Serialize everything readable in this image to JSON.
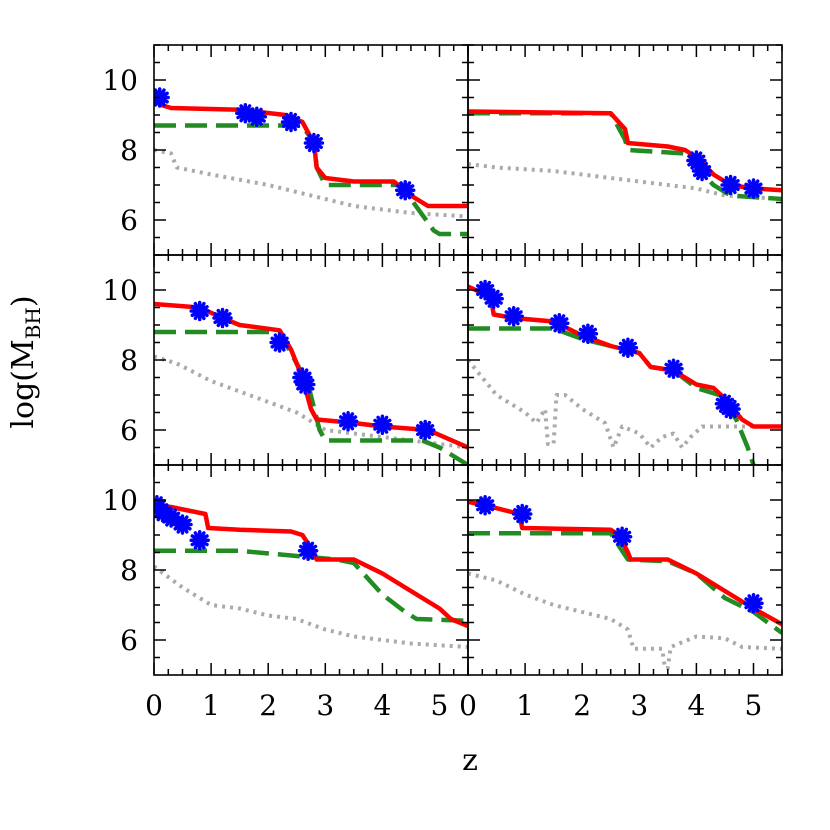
{
  "chart_data": {
    "type": "line",
    "xlabel": "z",
    "ylabel": "log(M",
    "ylabel_sub": "BH",
    "ylabel_close": ")",
    "xlim": [
      0,
      5.5
    ],
    "ylim": [
      5,
      11
    ],
    "x_ticks": [
      "0",
      "1",
      "2",
      "3",
      "4",
      "5"
    ],
    "y_ticks": [
      "6",
      "8",
      "10"
    ],
    "grid": false,
    "legend": "none",
    "colors": {
      "red": "#ff0000",
      "green": "#228b22",
      "gray": "#aaaaaa",
      "star": "#0000ff"
    },
    "panels": [
      {
        "red": [
          [
            0,
            9.5
          ],
          [
            0.1,
            9.3
          ],
          [
            0.3,
            9.2
          ],
          [
            1.5,
            9.15
          ],
          [
            2.3,
            9.0
          ],
          [
            2.6,
            8.8
          ],
          [
            2.8,
            8.2
          ],
          [
            2.85,
            7.5
          ],
          [
            3.0,
            7.2
          ],
          [
            3.5,
            7.1
          ],
          [
            4.2,
            7.1
          ],
          [
            4.5,
            6.7
          ],
          [
            4.8,
            6.4
          ],
          [
            5.5,
            6.4
          ]
        ],
        "green": [
          [
            0,
            8.7
          ],
          [
            2.6,
            8.7
          ],
          [
            2.8,
            8.2
          ],
          [
            2.85,
            7.5
          ],
          [
            3.0,
            7.0
          ],
          [
            4.3,
            7.0
          ],
          [
            4.5,
            6.6
          ],
          [
            4.9,
            5.7
          ],
          [
            5.0,
            5.6
          ],
          [
            5.5,
            5.6
          ]
        ],
        "gray": [
          [
            0,
            8.0
          ],
          [
            0.3,
            7.9
          ],
          [
            0.4,
            7.5
          ],
          [
            1.0,
            7.3
          ],
          [
            2.0,
            7.0
          ],
          [
            2.5,
            6.8
          ],
          [
            3.0,
            6.6
          ],
          [
            3.5,
            6.4
          ],
          [
            4.0,
            6.3
          ],
          [
            4.5,
            6.2
          ],
          [
            5.5,
            6.1
          ]
        ],
        "stars": [
          [
            0.1,
            9.5
          ],
          [
            1.6,
            9.05
          ],
          [
            1.8,
            8.95
          ],
          [
            2.4,
            8.8
          ],
          [
            2.8,
            8.2
          ],
          [
            4.4,
            6.85
          ]
        ]
      },
      {
        "red": [
          [
            0,
            9.1
          ],
          [
            2.5,
            9.05
          ],
          [
            2.75,
            8.6
          ],
          [
            2.8,
            8.2
          ],
          [
            3.5,
            8.1
          ],
          [
            3.8,
            8.0
          ],
          [
            4.0,
            7.8
          ],
          [
            4.3,
            7.3
          ],
          [
            4.6,
            7.0
          ],
          [
            5.0,
            6.9
          ],
          [
            5.5,
            6.85
          ]
        ],
        "green": [
          [
            0,
            9.05
          ],
          [
            2.5,
            9.05
          ],
          [
            2.75,
            8.3
          ],
          [
            2.8,
            8.0
          ],
          [
            3.8,
            7.9
          ],
          [
            4.0,
            7.5
          ],
          [
            4.3,
            7.0
          ],
          [
            4.6,
            6.7
          ],
          [
            5.5,
            6.6
          ]
        ],
        "gray": [
          [
            0,
            7.6
          ],
          [
            0.5,
            7.5
          ],
          [
            1.5,
            7.4
          ],
          [
            2.5,
            7.2
          ],
          [
            3.5,
            7.0
          ],
          [
            4.0,
            6.9
          ],
          [
            4.5,
            6.7
          ],
          [
            5.5,
            6.6
          ]
        ],
        "stars": [
          [
            4.0,
            7.7
          ],
          [
            4.1,
            7.4
          ],
          [
            4.6,
            7.0
          ],
          [
            5.0,
            6.9
          ]
        ]
      },
      {
        "red": [
          [
            0,
            9.6
          ],
          [
            0.8,
            9.5
          ],
          [
            1.2,
            9.2
          ],
          [
            1.5,
            9.0
          ],
          [
            2.2,
            8.85
          ],
          [
            2.4,
            8.3
          ],
          [
            2.6,
            7.5
          ],
          [
            2.75,
            6.6
          ],
          [
            2.85,
            6.3
          ],
          [
            3.5,
            6.2
          ],
          [
            4.0,
            6.1
          ],
          [
            4.8,
            6.0
          ],
          [
            5.5,
            5.5
          ]
        ],
        "green": [
          [
            0,
            8.8
          ],
          [
            2.2,
            8.8
          ],
          [
            2.5,
            7.9
          ],
          [
            2.7,
            7.3
          ],
          [
            2.9,
            6.0
          ],
          [
            3.0,
            5.7
          ],
          [
            4.7,
            5.7
          ],
          [
            5.0,
            5.5
          ],
          [
            5.5,
            5.0
          ]
        ],
        "gray": [
          [
            0,
            8.1
          ],
          [
            0.4,
            7.9
          ],
          [
            1.0,
            7.4
          ],
          [
            1.5,
            7.1
          ],
          [
            2.0,
            6.8
          ],
          [
            2.5,
            6.5
          ],
          [
            3.0,
            6.0
          ],
          [
            3.5,
            5.9
          ],
          [
            4.0,
            5.8
          ],
          [
            4.5,
            5.7
          ],
          [
            5.0,
            5.6
          ],
          [
            5.5,
            5.5
          ]
        ],
        "stars": [
          [
            0.8,
            9.4
          ],
          [
            1.2,
            9.2
          ],
          [
            2.2,
            8.5
          ],
          [
            2.6,
            7.5
          ],
          [
            2.65,
            7.3
          ],
          [
            3.4,
            6.25
          ],
          [
            4.0,
            6.15
          ],
          [
            4.75,
            6.0
          ]
        ]
      },
      {
        "red": [
          [
            0,
            10.1
          ],
          [
            0.4,
            9.8
          ],
          [
            0.45,
            9.3
          ],
          [
            0.8,
            9.2
          ],
          [
            1.5,
            9.1
          ],
          [
            2.0,
            8.7
          ],
          [
            2.5,
            8.4
          ],
          [
            3.0,
            8.2
          ],
          [
            3.2,
            7.8
          ],
          [
            3.6,
            7.7
          ],
          [
            4.0,
            7.3
          ],
          [
            4.3,
            7.2
          ],
          [
            4.5,
            6.9
          ],
          [
            4.8,
            6.3
          ],
          [
            5.0,
            6.1
          ],
          [
            5.5,
            6.1
          ]
        ],
        "green": [
          [
            0,
            8.9
          ],
          [
            1.5,
            8.9
          ],
          [
            2.0,
            8.6
          ],
          [
            2.5,
            8.4
          ],
          [
            3.0,
            8.2
          ],
          [
            3.2,
            7.8
          ],
          [
            3.6,
            7.7
          ],
          [
            4.0,
            7.2
          ],
          [
            4.4,
            7.0
          ],
          [
            4.7,
            6.3
          ],
          [
            4.9,
            5.5
          ],
          [
            5.0,
            5.0
          ]
        ],
        "gray": [
          [
            0,
            8.0
          ],
          [
            0.5,
            7.0
          ],
          [
            1.0,
            6.5
          ],
          [
            1.2,
            6.2
          ],
          [
            1.35,
            6.6
          ],
          [
            1.4,
            5.6
          ],
          [
            1.5,
            5.6
          ],
          [
            1.55,
            7.0
          ],
          [
            1.7,
            7.0
          ],
          [
            2.0,
            6.6
          ],
          [
            2.4,
            6.2
          ],
          [
            2.55,
            5.5
          ],
          [
            2.7,
            6.1
          ],
          [
            3.0,
            5.9
          ],
          [
            3.2,
            5.5
          ],
          [
            3.4,
            5.8
          ],
          [
            3.6,
            5.9
          ],
          [
            3.75,
            5.5
          ],
          [
            3.9,
            5.8
          ],
          [
            4.1,
            6.1
          ],
          [
            4.5,
            6.1
          ],
          [
            5.5,
            6.1
          ]
        ],
        "stars": [
          [
            0.3,
            10.0
          ],
          [
            0.45,
            9.75
          ],
          [
            0.8,
            9.25
          ],
          [
            1.6,
            9.05
          ],
          [
            2.1,
            8.75
          ],
          [
            2.8,
            8.35
          ],
          [
            3.6,
            7.75
          ],
          [
            4.5,
            6.75
          ],
          [
            4.6,
            6.6
          ]
        ]
      },
      {
        "red": [
          [
            0,
            9.85
          ],
          [
            0.3,
            9.8
          ],
          [
            0.9,
            9.6
          ],
          [
            0.95,
            9.2
          ],
          [
            1.5,
            9.15
          ],
          [
            2.4,
            9.1
          ],
          [
            2.6,
            9.0
          ],
          [
            2.8,
            8.5
          ],
          [
            2.85,
            8.3
          ],
          [
            3.5,
            8.3
          ],
          [
            4.0,
            7.9
          ],
          [
            4.4,
            7.5
          ],
          [
            4.7,
            7.2
          ],
          [
            5.0,
            6.9
          ],
          [
            5.2,
            6.6
          ],
          [
            5.5,
            6.4
          ]
        ],
        "green": [
          [
            0,
            8.55
          ],
          [
            1.5,
            8.55
          ],
          [
            2.5,
            8.4
          ],
          [
            3.2,
            8.3
          ],
          [
            3.5,
            8.2
          ],
          [
            4.0,
            7.3
          ],
          [
            4.4,
            6.8
          ],
          [
            4.6,
            6.6
          ],
          [
            5.5,
            6.55
          ]
        ],
        "gray": [
          [
            0,
            8.1
          ],
          [
            0.5,
            7.5
          ],
          [
            1.0,
            7.0
          ],
          [
            1.5,
            6.9
          ],
          [
            2.0,
            6.7
          ],
          [
            2.5,
            6.6
          ],
          [
            3.0,
            6.3
          ],
          [
            3.5,
            6.1
          ],
          [
            4.0,
            6.0
          ],
          [
            4.5,
            5.9
          ],
          [
            5.5,
            5.8
          ]
        ],
        "stars": [
          [
            0.05,
            9.85
          ],
          [
            0.15,
            9.65
          ],
          [
            0.3,
            9.5
          ],
          [
            0.5,
            9.3
          ],
          [
            0.8,
            8.85
          ],
          [
            2.7,
            8.55
          ]
        ]
      },
      {
        "red": [
          [
            0,
            9.95
          ],
          [
            0.3,
            9.85
          ],
          [
            0.9,
            9.6
          ],
          [
            0.95,
            9.2
          ],
          [
            2.5,
            9.15
          ],
          [
            2.65,
            9.0
          ],
          [
            2.8,
            8.5
          ],
          [
            2.85,
            8.3
          ],
          [
            3.5,
            8.3
          ],
          [
            4.0,
            7.9
          ],
          [
            4.5,
            7.4
          ],
          [
            5.0,
            6.9
          ],
          [
            5.5,
            6.45
          ]
        ],
        "green": [
          [
            0,
            9.05
          ],
          [
            2.5,
            9.05
          ],
          [
            2.8,
            8.3
          ],
          [
            3.5,
            8.25
          ],
          [
            4.0,
            7.9
          ],
          [
            4.5,
            7.2
          ],
          [
            5.0,
            6.8
          ],
          [
            5.5,
            6.2
          ]
        ],
        "gray": [
          [
            0,
            7.9
          ],
          [
            0.5,
            7.7
          ],
          [
            1.0,
            7.3
          ],
          [
            1.5,
            7.0
          ],
          [
            2.0,
            6.8
          ],
          [
            2.5,
            6.6
          ],
          [
            2.8,
            6.3
          ],
          [
            2.9,
            5.75
          ],
          [
            3.4,
            5.75
          ],
          [
            3.45,
            5.2
          ],
          [
            3.5,
            5.2
          ],
          [
            3.55,
            5.8
          ],
          [
            3.7,
            5.9
          ],
          [
            4.0,
            6.1
          ],
          [
            4.5,
            6.05
          ],
          [
            4.8,
            5.8
          ],
          [
            5.5,
            5.75
          ]
        ],
        "stars": [
          [
            0.3,
            9.85
          ],
          [
            0.95,
            9.6
          ],
          [
            2.7,
            8.95
          ],
          [
            5.0,
            7.05
          ]
        ]
      }
    ]
  }
}
